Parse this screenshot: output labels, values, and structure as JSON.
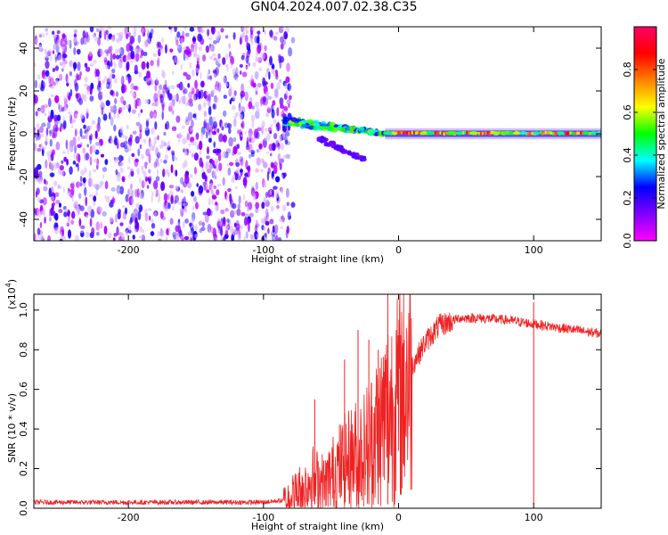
{
  "title": "GN04.2024.007.02.38.C35",
  "chart_data": [
    {
      "type": "heatmap",
      "title": "GN04.2024.007.02.38.C35",
      "xlabel": "Height of straight line (km)",
      "ylabel": "Frequency (Hz)",
      "xlim": [
        -270,
        150
      ],
      "ylim": [
        -50,
        50
      ],
      "x_ticks": [
        -200,
        -100,
        0,
        100
      ],
      "y_ticks": [
        -40,
        -20,
        0,
        20,
        40
      ],
      "colorbar": {
        "label": "Normalized spectral amplitude",
        "range": [
          0,
          1
        ],
        "ticks": [
          0.0,
          0.2,
          0.4,
          0.6,
          0.8
        ],
        "colormap": [
          "#ff00ff",
          "#8000ff",
          "#0000ff",
          "#00ffff",
          "#00ff00",
          "#ffff00",
          "#ff8000",
          "#ff0000",
          "#ff0066"
        ]
      },
      "regions": [
        {
          "name": "noise",
          "x": [
            -270,
            -82
          ],
          "y": [
            -50,
            50
          ],
          "amplitude": [
            0.05,
            0.25
          ]
        },
        {
          "name": "decaying-trace",
          "x": [
            -85,
            -10
          ],
          "y_start": 6,
          "y_end": 0,
          "amplitude": [
            0.2,
            0.6
          ]
        },
        {
          "name": "lower-branch",
          "x": [
            -60,
            -25
          ],
          "y_start": -2,
          "y_end": -12,
          "amplitude": [
            0.1,
            0.2
          ]
        },
        {
          "name": "carrier-line",
          "x": [
            -10,
            150
          ],
          "y": 0,
          "amplitude": [
            0.5,
            0.95
          ]
        }
      ]
    },
    {
      "type": "line",
      "xlabel": "Height of straight line (km)",
      "ylabel": "SNR (10 * v/v)",
      "y_multiplier": "(x10",
      "y_multiplier_exp": "4",
      "y_multiplier_close": ")",
      "xlim": [
        -270,
        150
      ],
      "ylim": [
        0,
        1.08
      ],
      "x_ticks": [
        -200,
        -100,
        0,
        100
      ],
      "y_ticks": [
        0.0,
        0.2,
        0.4,
        0.6,
        0.8,
        1.0
      ],
      "series_color": "#ee2222",
      "series": [
        {
          "name": "SNR",
          "x": [
            -270,
            -200,
            -150,
            -100,
            -85,
            -75,
            -65,
            -55,
            -45,
            -35,
            -25,
            -15,
            -8,
            0,
            10,
            20,
            30,
            45,
            60,
            80,
            100,
            120,
            140,
            150
          ],
          "y": [
            0.03,
            0.03,
            0.03,
            0.03,
            0.04,
            0.08,
            0.15,
            0.12,
            0.2,
            0.25,
            0.3,
            0.4,
            0.5,
            0.55,
            0.72,
            0.84,
            0.92,
            0.96,
            0.96,
            0.95,
            0.93,
            0.91,
            0.89,
            0.88
          ]
        }
      ],
      "spikes": [
        {
          "x": -62,
          "y": 0.55
        },
        {
          "x": -40,
          "y": 0.75
        },
        {
          "x": -30,
          "y": 0.9
        },
        {
          "x": -22,
          "y": 0.85
        },
        {
          "x": -15,
          "y": 0.8
        },
        {
          "x": -8,
          "y": 1.08
        },
        {
          "x": 100,
          "y": 1.04
        }
      ]
    }
  ]
}
